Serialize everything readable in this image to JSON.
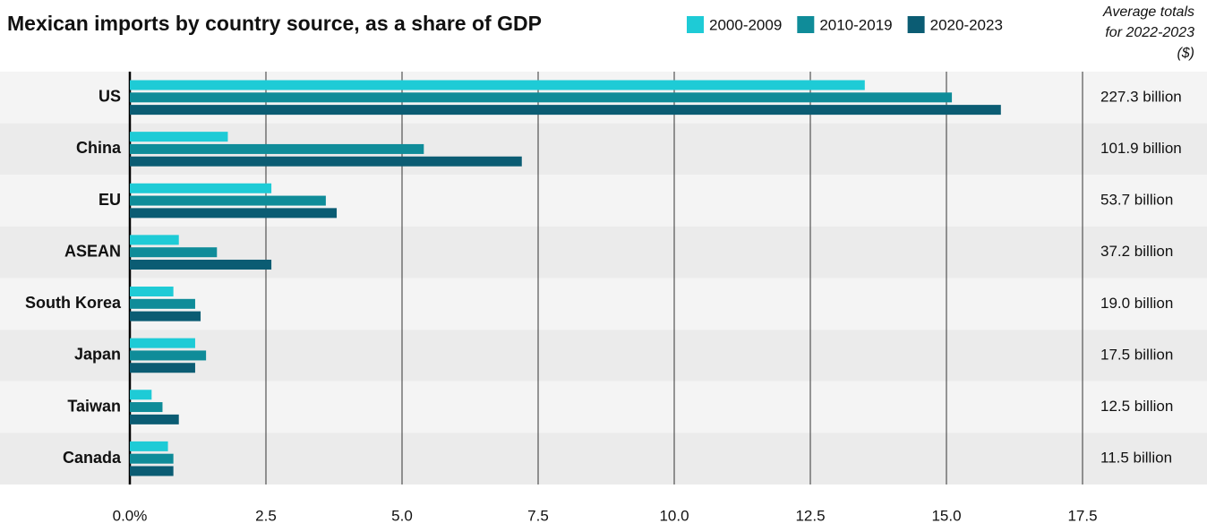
{
  "chart_data": {
    "type": "bar",
    "orientation": "horizontal",
    "title": "Mexican imports by country source, as a share of GDP",
    "categories": [
      "US",
      "China",
      "EU",
      "ASEAN",
      "South Korea",
      "Japan",
      "Taiwan",
      "Canada"
    ],
    "series": [
      {
        "name": "2000-2009",
        "color": "#1ecbd6",
        "values": [
          13.5,
          1.8,
          2.6,
          0.9,
          0.8,
          1.2,
          0.4,
          0.7
        ]
      },
      {
        "name": "2010-2019",
        "color": "#0f8c99",
        "values": [
          15.1,
          5.4,
          3.6,
          1.6,
          1.2,
          1.4,
          0.6,
          0.8
        ]
      },
      {
        "name": "2020-2023",
        "color": "#0b5c73",
        "values": [
          16.0,
          7.2,
          3.8,
          2.6,
          1.3,
          1.2,
          0.9,
          0.8
        ]
      }
    ],
    "xlim": [
      0,
      17.5
    ],
    "xticks": [
      {
        "value": 0,
        "label": "0.0%"
      },
      2.5,
      {
        "value": 5,
        "label": "5.0"
      },
      7.5,
      {
        "value": 10,
        "label": "10.0"
      },
      12.5,
      {
        "value": 15,
        "label": "15.0"
      },
      17.5
    ],
    "grid": true,
    "totals_header": "Average totals for 2022-2023 ($)",
    "totals": [
      "227.3 billion",
      "101.9 billion",
      "53.7 billion",
      "37.2 billion",
      "19.0 billion",
      "17.5 billion",
      "12.5 billion",
      "11.5 billion"
    ]
  }
}
